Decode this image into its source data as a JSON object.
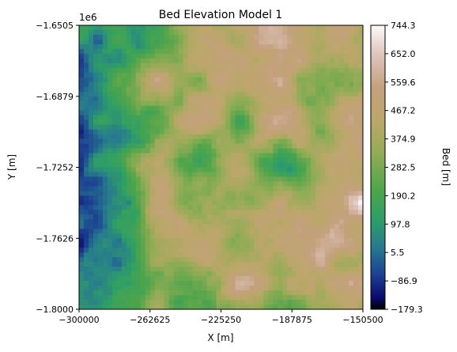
{
  "chart_data": {
    "type": "heatmap",
    "title": "Bed Elevation Model 1",
    "xlabel": "X [m]",
    "ylabel": "Y [m]",
    "y_offset_label": "1e6",
    "xlim": [
      -300000,
      -150500
    ],
    "ylim": [
      -1.8,
      -1.6505
    ],
    "x_ticks": [
      "−300000",
      "−262625",
      "−225250",
      "−187875",
      "−150500"
    ],
    "y_ticks": [
      "−1.6505",
      "−1.6879",
      "−1.7252",
      "−1.7626",
      "−1.8000"
    ],
    "colorbar": {
      "label": "Bed [m]",
      "colormap": "gist_earth",
      "range": [
        -179.3,
        744.3
      ],
      "ticks": [
        "744.3",
        "652.0",
        "559.6",
        "467.2",
        "374.9",
        "282.5",
        "190.2",
        "97.8",
        "5.5",
        "−86.9",
        "−179.3"
      ]
    },
    "grid": false
  }
}
